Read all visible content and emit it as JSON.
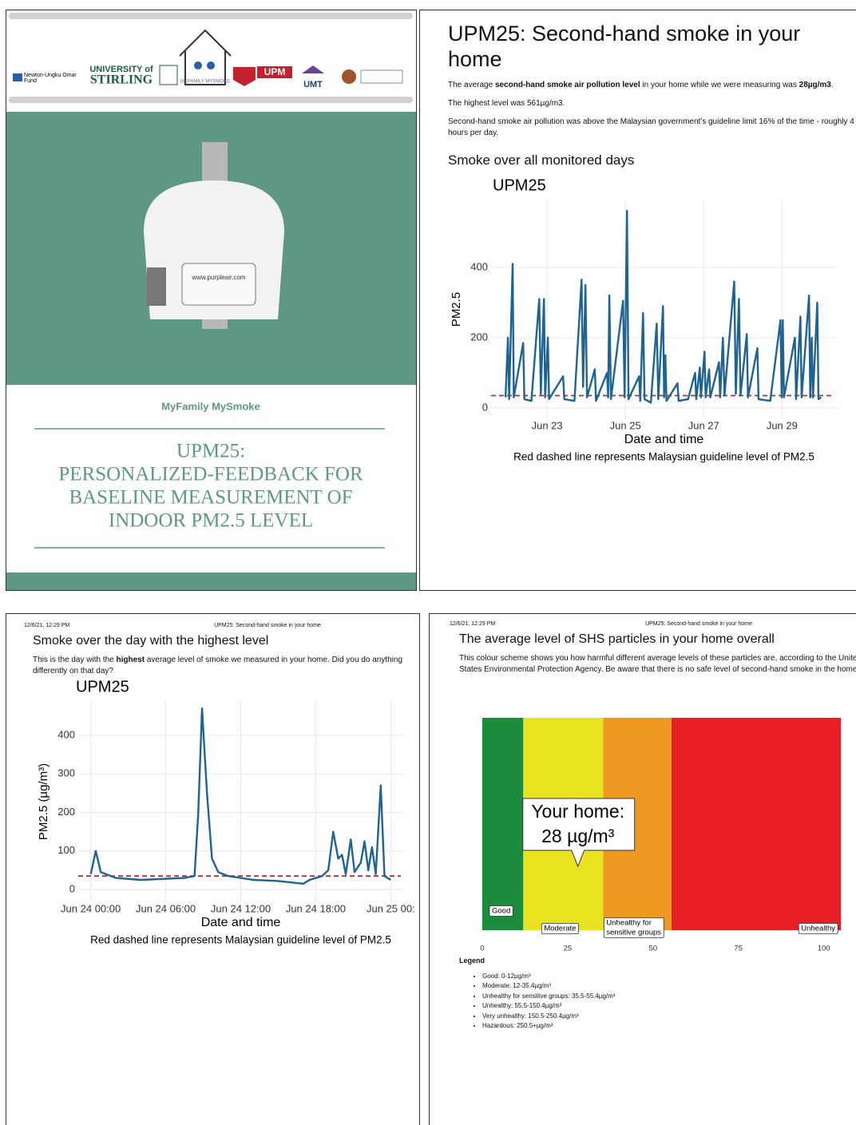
{
  "cover": {
    "logos": [
      "Newton-Ungku Omar",
      "Fund",
      "UNIVERSITY of",
      "STIRLING",
      "MYFAMILY MYSMOKE",
      "UPM",
      "UMT"
    ],
    "device_label": "www.purpleair.com",
    "project": "MyFamily MySmoke",
    "title_lines": [
      "UPM25:",
      "PERSONALIZED-FEEDBACK FOR",
      "BASELINE MEASUREMENT OF",
      "INDOOR PM2.5  LEVEL"
    ]
  },
  "summary_page": {
    "title": "UPM25: Second-hand smoke in your home",
    "paragraphs": [
      [
        {
          "text": "The average "
        },
        {
          "text": "second-hand smoke air pollution level",
          "bold": true
        },
        {
          "text": " in your home while we were measuring was "
        },
        {
          "text": "28µg/m3",
          "bold": true
        },
        {
          "text": "."
        }
      ],
      [
        {
          "text": "The highest level was 561µg/m3."
        }
      ],
      [
        {
          "text": "Second-hand smoke air pollution was above the Malaysian government's guideline limit 16% of the time - roughly 4 hours per day."
        }
      ]
    ],
    "heading": "Smoke over all monitored days"
  },
  "day_page": {
    "header_date": "12/6/21, 12:29 PM",
    "header_title": "UPM25: Second-hand smoke in your home",
    "heading": "Smoke over the day with the highest level",
    "paragraph": [
      {
        "text": "This is the day with the "
      },
      {
        "text": "highest",
        "bold": true
      },
      {
        "text": " average level of smoke we measured in your home. Did you do anything differently on that day?"
      }
    ]
  },
  "scale_page": {
    "header_date": "12/6/21, 12:29 PM",
    "header_title": "UPM25: Second-hand smoke in your home",
    "heading": "The average level of SHS particles in your home overall",
    "paragraph": "This colour scheme shows you how harmful different average levels of these particles are, according to the United States Environmental Protection Agency. Be aware that there is no safe level of second-hand smoke in the home.",
    "legend_title": "Legend",
    "legend_items": [
      "Good: 0-12µg/m³",
      "Moderate: 12-35.4µg/m³",
      "Unhealthy for sensitive groups: 35.5-55.4µg/m³",
      "Unhealthy: 55.5-150.4µg/m³",
      "Very unhealthy: 150.5-250.4µg/m³",
      "Hazardous: 250.5+µg/m³"
    ]
  },
  "chart_data": [
    {
      "type": "line",
      "title": "UPM25",
      "x_label": "Date and time",
      "y_label": "PM2.5",
      "caption": "Red dashed line represents Malaysian guideline level of PM2.5",
      "color": "#1f6391",
      "guideline": 35,
      "guideline_color": "#c0272d",
      "grid": true,
      "xlim": [
        21.57,
        30.4
      ],
      "ylim": [
        -32,
        593
      ],
      "xticks": [
        {
          "value": 23,
          "label": "Jun 23"
        },
        {
          "value": 25,
          "label": "Jun 25"
        },
        {
          "value": 27,
          "label": "Jun 27"
        },
        {
          "value": 29,
          "label": "Jun 29"
        }
      ],
      "yticks": [
        0,
        200,
        400
      ],
      "x": [
        21.94,
        22.0,
        22.03,
        22.12,
        22.15,
        22.39,
        22.42,
        22.6,
        22.8,
        22.84,
        22.92,
        22.95,
        23.02,
        23.05,
        23.41,
        23.44,
        23.7,
        23.88,
        23.92,
        23.98,
        24.02,
        24.22,
        24.25,
        24.53,
        24.56,
        24.59,
        24.63,
        24.94,
        24.98,
        25.04,
        25.08,
        25.35,
        25.38,
        25.45,
        25.49,
        25.65,
        25.8,
        25.84,
        25.96,
        25.99,
        26.02,
        26.05,
        26.33,
        26.36,
        26.6,
        26.78,
        26.81,
        26.9,
        26.93,
        27.02,
        27.05,
        27.14,
        27.17,
        27.39,
        27.42,
        27.49,
        27.53,
        27.78,
        27.82,
        27.9,
        27.94,
        28.1,
        28.13,
        28.37,
        28.4,
        28.7,
        28.96,
        28.99,
        29.02,
        29.05,
        29.33,
        29.36,
        29.47,
        29.5,
        29.69,
        29.72,
        29.76,
        29.79,
        29.9,
        29.93,
        30.0
      ],
      "values": [
        30,
        200,
        25,
        410,
        30,
        185,
        25,
        20,
        310,
        40,
        310,
        30,
        200,
        25,
        90,
        25,
        20,
        365,
        60,
        350,
        30,
        110,
        20,
        100,
        30,
        320,
        25,
        305,
        30,
        561,
        25,
        90,
        20,
        270,
        25,
        15,
        240,
        25,
        290,
        30,
        150,
        20,
        70,
        20,
        25,
        100,
        25,
        115,
        30,
        160,
        30,
        110,
        30,
        130,
        30,
        200,
        35,
        360,
        40,
        310,
        35,
        210,
        30,
        170,
        25,
        20,
        250,
        30,
        250,
        30,
        200,
        25,
        260,
        30,
        320,
        30,
        200,
        30,
        300,
        25,
        30
      ]
    },
    {
      "type": "line",
      "title": "UPM25",
      "x_label": "Date and time",
      "y_label": "PM2.5 (µg/m³)",
      "caption": "Red dashed line represents Malaysian guideline level of PM2.5",
      "color": "#1f6391",
      "guideline": 35,
      "guideline_color": "#c0272d",
      "grid": true,
      "xlim": [
        -1,
        25
      ],
      "ylim": [
        -33,
        489
      ],
      "xticks": [
        {
          "value": 0,
          "label": "Jun 24 00:00"
        },
        {
          "value": 6,
          "label": "Jun 24 06:00"
        },
        {
          "value": 12,
          "label": "Jun 24 12:00"
        },
        {
          "value": 18,
          "label": "Jun 24 18:00"
        },
        {
          "value": 24,
          "label": "Jun 25 00:"
        }
      ],
      "yticks": [
        0,
        100,
        200,
        300,
        400
      ],
      "x": [
        0,
        0.4,
        0.8,
        2,
        4,
        7.5,
        8.3,
        8.6,
        8.9,
        9.3,
        9.7,
        10.2,
        11,
        13,
        15,
        17,
        17.5,
        18.5,
        19,
        19.4,
        19.8,
        20.1,
        20.4,
        20.8,
        21.1,
        21.6,
        21.9,
        22.2,
        22.5,
        22.8,
        23.2,
        23.5,
        24
      ],
      "values": [
        40,
        100,
        45,
        30,
        25,
        30,
        35,
        200,
        470,
        250,
        80,
        45,
        35,
        25,
        22,
        15,
        25,
        35,
        50,
        150,
        80,
        90,
        40,
        130,
        45,
        70,
        125,
        50,
        110,
        40,
        270,
        35,
        25
      ]
    },
    {
      "type": "scale",
      "xlim": [
        0,
        105
      ],
      "xticks": [
        0,
        25,
        50,
        75,
        100
      ],
      "bands": [
        {
          "label": [
            "Good"
          ],
          "from": 0,
          "color": "#1a8c3c"
        },
        {
          "label": [
            "Moderate"
          ],
          "from": 12,
          "color": "#e8e221"
        },
        {
          "label": [
            "Unhealthy for",
            "sensitive groups"
          ],
          "from": 35.4,
          "color": "#ee9a22"
        },
        {
          "label": [
            "Unhealthy"
          ],
          "from": 55.4,
          "color": "#e82025"
        }
      ],
      "marker_title": "Your home:",
      "marker_value": 28,
      "marker_value_label": "28 µg/m³"
    }
  ]
}
